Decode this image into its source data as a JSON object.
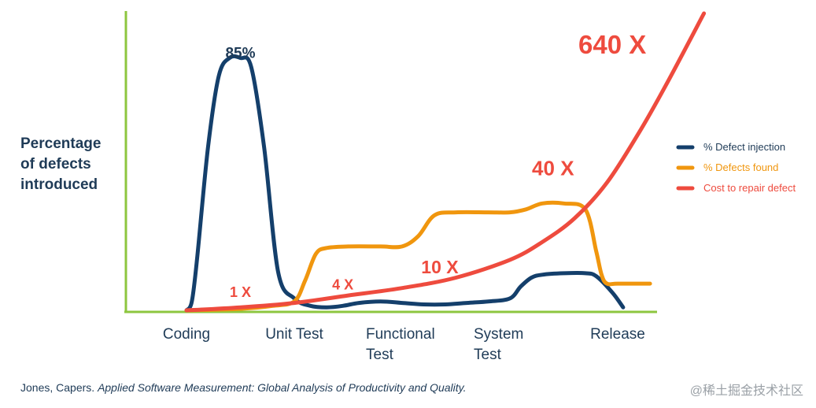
{
  "chart_data": {
    "type": "line",
    "ylabel": [
      "Percentage",
      "of defects",
      "introduced"
    ],
    "categories": [
      "Coding",
      "Unit Test",
      "Functional Test",
      "System Test",
      "Release"
    ],
    "category_labels": [
      [
        "Coding"
      ],
      [
        "Unit Test"
      ],
      [
        "Functional",
        "Test"
      ],
      [
        "System",
        "Test"
      ],
      [
        "Release"
      ]
    ],
    "ylim": [
      0,
      100
    ],
    "series": [
      {
        "name": "% Defect injection",
        "color": "#143f6b",
        "x": [
          0,
          0.05,
          0.1,
          0.2,
          0.3,
          0.4,
          0.5,
          0.6,
          0.72,
          0.85,
          1.0,
          1.15,
          1.3,
          1.45,
          1.6,
          1.8,
          2.0,
          2.2,
          2.4,
          2.6,
          2.8,
          3.0,
          3.1,
          3.2,
          3.3,
          3.5,
          3.7,
          3.8,
          3.95,
          4.05
        ],
        "y": [
          0,
          3,
          18,
          55,
          79,
          85,
          85,
          82,
          55,
          13,
          4,
          1.5,
          1,
          1.5,
          2.5,
          3,
          2.5,
          2,
          2,
          2.5,
          3,
          4,
          8,
          11,
          12,
          12.5,
          12.5,
          11.5,
          6,
          1
        ]
      },
      {
        "name": "% Defects found",
        "color": "#f0960e",
        "x": [
          0,
          0.5,
          0.8,
          1.0,
          1.1,
          1.2,
          1.3,
          1.5,
          1.8,
          2.0,
          2.15,
          2.3,
          2.5,
          2.8,
          3.0,
          3.15,
          3.3,
          3.5,
          3.7,
          3.8,
          3.85,
          3.9,
          4.0,
          4.3
        ],
        "y": [
          0,
          0.5,
          1.5,
          3,
          10,
          19,
          21,
          21.5,
          21.5,
          21.5,
          25,
          32,
          33,
          33,
          33,
          34,
          36,
          36,
          34,
          20,
          12,
          9,
          9,
          9
        ]
      },
      {
        "name": "Cost to repair defect",
        "color": "#ee4b3e",
        "x": [
          0,
          0.5,
          1.0,
          1.5,
          2.0,
          2.5,
          3.0,
          3.3,
          3.6,
          3.9,
          4.2,
          4.45,
          4.8
        ],
        "y": [
          0,
          1,
          2.5,
          5,
          7.5,
          11,
          17,
          23,
          31,
          43,
          60,
          76,
          100
        ]
      }
    ],
    "annotations": [
      {
        "text": "85%",
        "x": 0.5,
        "y": 85,
        "series": "% Defect injection"
      },
      {
        "text": "1 X",
        "x": 0.5,
        "y": 4.5,
        "series": "Cost to repair defect"
      },
      {
        "text": "4 X",
        "x": 1.45,
        "y": 7,
        "series": "Cost to repair defect"
      },
      {
        "text": "10 X",
        "x": 2.35,
        "y": 12.5,
        "series": "Cost to repair defect"
      },
      {
        "text": "40 X",
        "x": 3.4,
        "y": 45.5,
        "series": "Cost to repair defect"
      },
      {
        "text": "640 X",
        "x": 3.95,
        "y": 86.5,
        "series": "Cost to repair defect"
      }
    ],
    "legend": {
      "position": "right",
      "items": [
        "% Defect injection",
        "% Defects found",
        "Cost to repair defect"
      ]
    }
  },
  "citation": {
    "author": "Jones, Capers.",
    "title": "Applied Software Measurement: Global Analysis of Productivity and Quality."
  },
  "watermark": "@稀土掘金技术社区",
  "colors": {
    "axis": "#8dc63f",
    "text": "#1f3b57",
    "navy": "#143f6b",
    "orange": "#f0960e",
    "red": "#ee4b3e"
  }
}
